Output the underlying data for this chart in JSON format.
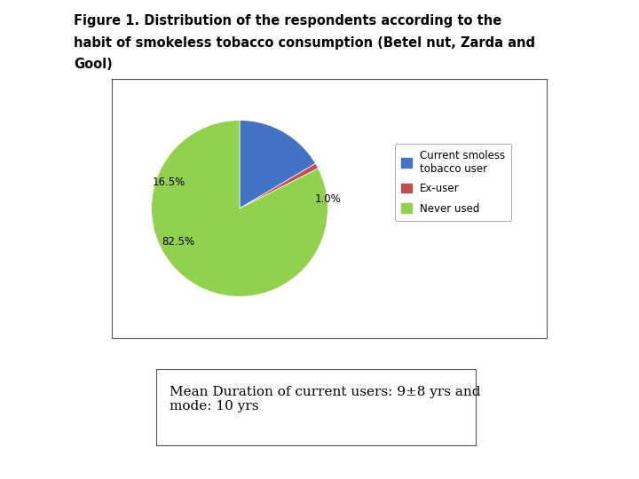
{
  "title_line1": "Figure 1. Distribution of the respondents according to the",
  "title_line2": "habit of smokeless tobacco consumption (Betel nut, Zarda and",
  "title_line3": "Gool)",
  "slices": [
    16.5,
    1.0,
    82.5
  ],
  "slice_labels": [
    "16.5%",
    "1.0%",
    "82.5%"
  ],
  "colors": [
    "#4472C4",
    "#C0504D",
    "#92D050"
  ],
  "legend_labels": [
    "Current smoless\ntobacco user",
    "Ex-user",
    "Never used"
  ],
  "startangle": 90,
  "annotation_text": "Mean Duration of current users: 9±8 yrs and\nmode: 10 yrs",
  "bg_color": "#FFFFFF",
  "title_fontsize": 10.5,
  "label_fontsize": 8.5,
  "legend_fontsize": 8.5,
  "ann_fontsize": 11
}
